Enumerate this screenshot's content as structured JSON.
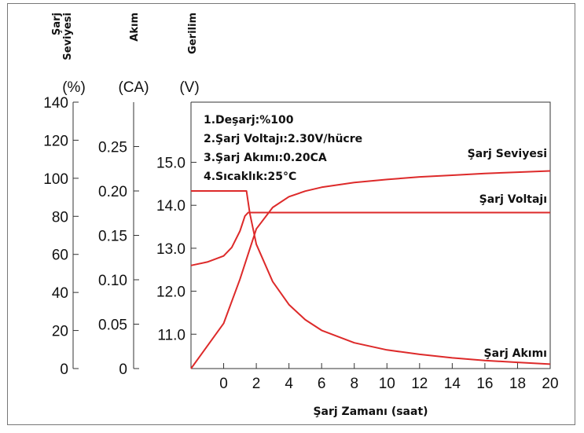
{
  "chart_data": {
    "type": "line",
    "xlabel": "Şarj Zamanı (saat)",
    "x_ticks": [
      "0",
      "2",
      "4",
      "6",
      "8",
      "10",
      "12",
      "14",
      "16",
      "18",
      "20"
    ],
    "xlim": [
      -2,
      20
    ],
    "axes": {
      "level": {
        "title_lines": [
          "Şarj",
          "Seviyesi"
        ],
        "unit": "(%)",
        "ticks": [
          "0",
          "20",
          "40",
          "60",
          "80",
          "100",
          "120",
          "140"
        ],
        "ylim": [
          0,
          140
        ]
      },
      "current": {
        "title_lines": [
          "Akım"
        ],
        "unit": "(CA)",
        "ticks": [
          "0",
          "0.05",
          "0.10",
          "0.15",
          "0.20",
          "0.25"
        ],
        "ylim": [
          0,
          0.3
        ]
      },
      "voltage": {
        "title_lines": [
          "Gerilim"
        ],
        "unit": "(V)",
        "ticks": [
          "11.0",
          "12.0",
          "13.0",
          "14.0",
          "15.0"
        ],
        "ylim": [
          10.2,
          16.4
        ]
      }
    },
    "notes": [
      "1.Deşarj:%100",
      "2.Şarj Voltajı:2.30V/hücre",
      "3.Şarj Akımı:0.20CA",
      "4.Sıcaklık:25°C"
    ],
    "series": [
      {
        "name": "Şarj Seviyesi",
        "axis": "voltage",
        "color": "#dd2a2a",
        "x": [
          -2,
          0,
          1,
          2,
          3,
          4,
          5,
          6,
          8,
          10,
          12,
          14,
          16,
          18,
          20
        ],
        "y": [
          10.2,
          11.25,
          12.28,
          13.45,
          13.95,
          14.2,
          14.33,
          14.42,
          14.53,
          14.6,
          14.66,
          14.7,
          14.74,
          14.77,
          14.8
        ]
      },
      {
        "name": "Şarj Voltajı",
        "axis": "voltage",
        "color": "#dd2a2a",
        "x": [
          -2,
          -1,
          0,
          0.5,
          1,
          1.3,
          1.5,
          2,
          4,
          8,
          12,
          16,
          20
        ],
        "y": [
          12.6,
          12.68,
          12.82,
          13.02,
          13.4,
          13.75,
          13.83,
          13.83,
          13.83,
          13.83,
          13.83,
          13.83,
          13.83
        ]
      },
      {
        "name": "Şarj Akımı",
        "axis": "current",
        "color": "#dd2a2a",
        "x": [
          -2,
          1.4,
          1.6,
          2,
          3,
          4,
          5,
          6,
          8,
          10,
          12,
          14,
          16,
          18,
          20
        ],
        "y": [
          0.2,
          0.2,
          0.175,
          0.14,
          0.098,
          0.072,
          0.055,
          0.043,
          0.029,
          0.021,
          0.016,
          0.012,
          0.009,
          0.007,
          0.005
        ]
      }
    ],
    "grid": false,
    "legend": "none"
  }
}
